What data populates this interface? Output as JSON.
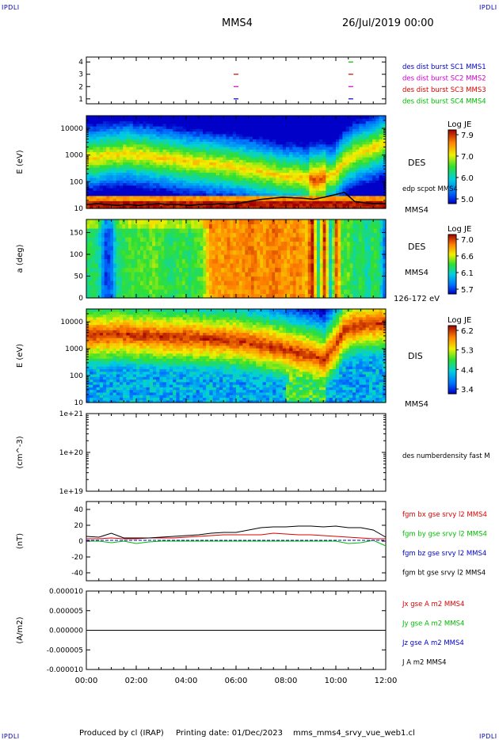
{
  "header": {
    "corner_label": "IPDLI",
    "spacecraft": "MMS4",
    "date": "26/Jul/2019 00:00"
  },
  "footer": {
    "produced_by": "Produced by cl (IRAP)",
    "printing_date": "Printing date: 01/Dec/2023",
    "config": "mms_mms4_srvy_vue_web1.cl"
  },
  "time_axis": {
    "ticks": [
      "00:00",
      "02:00",
      "04:00",
      "06:00",
      "08:00",
      "10:00",
      "12:00"
    ],
    "range_hours": [
      0,
      12
    ]
  },
  "colors": {
    "mms1": "#0000cc",
    "mms2": "#cc00cc",
    "mms3": "#dd0000",
    "mms4": "#00bb00",
    "bx": "#dd0000",
    "by": "#00bb00",
    "bz": "#0000cc",
    "bt": "#000000"
  },
  "chart_data": [
    {
      "type": "scatter",
      "ytick_labels": [
        "1",
        "2",
        "3",
        "4"
      ],
      "ylim": [
        0.6,
        4.4
      ],
      "legend": [
        "des dist burst SC1 MMS1",
        "des dist burst SC2 MMS2",
        "des dist burst SC3 MMS3",
        "des dist burst SC4 MMS4"
      ],
      "series": [
        {
          "sc": 1,
          "x": [
            6.0,
            10.6
          ]
        },
        {
          "sc": 2,
          "x": [
            6.0,
            10.6
          ]
        },
        {
          "sc": 3,
          "x": [
            6.0,
            10.6
          ]
        },
        {
          "sc": 4,
          "x": [
            10.6
          ]
        }
      ]
    },
    {
      "type": "heatmap",
      "ylabel": "E (eV)",
      "ytick_labels": [
        "10",
        "100",
        "1000",
        "10000"
      ],
      "scale": "log",
      "ylim": [
        10,
        30000
      ],
      "colorbar_title": "Log JE",
      "colorbar_ticks": [
        "7.9",
        "7.0",
        "6.0",
        "5.0"
      ],
      "instrument": "DES",
      "overlay_label": "edp scpot MMS4",
      "sc_label": "MMS4"
    },
    {
      "type": "heatmap",
      "ylabel": "a (deg)",
      "ytick_labels": [
        "0",
        "50",
        "100",
        "150"
      ],
      "ylim": [
        0,
        180
      ],
      "colorbar_title": "Log JE",
      "colorbar_ticks": [
        "7.0",
        "6.6",
        "6.1",
        "5.7"
      ],
      "instrument": "DES",
      "sc_label": "MMS4",
      "energy_range": "126-172 eV"
    },
    {
      "type": "heatmap",
      "ylabel": "E (eV)",
      "ytick_labels": [
        "10",
        "100",
        "1000",
        "10000"
      ],
      "scale": "log",
      "ylim": [
        10,
        30000
      ],
      "colorbar_title": "Log JE",
      "colorbar_ticks": [
        "6.2",
        "5.3",
        "4.4",
        "3.4"
      ],
      "instrument": "DIS",
      "sc_label": "MMS4"
    },
    {
      "type": "line",
      "ylabel": "(cm^-3)",
      "ytick_labels": [
        "1e+19",
        "1e+20",
        "1e+21"
      ],
      "scale": "log",
      "ylim": [
        1e+19,
        1e+21
      ],
      "legend": [
        "des numberdensity fast M"
      ]
    },
    {
      "type": "line",
      "ylabel": "(nT)",
      "ytick_labels": [
        "-40",
        "-20",
        "0",
        "20",
        "40"
      ],
      "ylim": [
        -50,
        50
      ],
      "legend": [
        "fgm bx gse srvy l2 MMS4",
        "fgm by gse srvy l2 MMS4",
        "fgm bz gse srvy l2 MMS4",
        "fgm bt gse srvy l2 MMS4"
      ],
      "x": [
        0,
        0.5,
        1,
        1.5,
        2,
        2.5,
        3,
        3.5,
        4,
        4.5,
        5,
        5.5,
        6,
        6.5,
        7,
        7.5,
        8,
        8.5,
        9,
        9.5,
        10,
        10.5,
        11,
        11.5,
        12
      ],
      "series": [
        {
          "key": "bx",
          "values": [
            3,
            3,
            4,
            3,
            3,
            4,
            4,
            4,
            5,
            6,
            7,
            8,
            8,
            8,
            8,
            10,
            9,
            8,
            8,
            7,
            6,
            5,
            4,
            3,
            3
          ]
        },
        {
          "key": "by",
          "values": [
            0,
            0,
            -2,
            0,
            -3,
            -1,
            0,
            0,
            0,
            0,
            0,
            0,
            0,
            0,
            0,
            0,
            0,
            0,
            0,
            0,
            0,
            -3,
            -2,
            1,
            -6
          ]
        },
        {
          "key": "bz",
          "values": [
            1,
            1,
            1,
            1,
            1,
            1,
            1,
            1,
            1,
            1,
            1,
            1,
            1,
            1,
            1,
            1,
            1,
            1,
            1,
            1,
            1,
            1,
            1,
            1,
            1
          ]
        },
        {
          "key": "bt",
          "values": [
            6,
            5,
            10,
            4,
            4,
            4,
            5,
            6,
            7,
            8,
            10,
            11,
            11,
            14,
            17,
            18,
            18,
            19,
            19,
            18,
            19,
            17,
            17,
            14,
            5
          ]
        }
      ]
    },
    {
      "type": "line",
      "ylabel": "(A/m2)",
      "ytick_labels": [
        "-0.000010",
        "-0.000005",
        "0.000000",
        "0.000005",
        "0.000010"
      ],
      "ylim": [
        -1e-05,
        1e-05
      ],
      "legend": [
        "Jx gse A m2 MMS4",
        "Jy gse A m2 MMS4",
        "Jz gse A m2 MMS4",
        "J A m2 MMS4"
      ],
      "x": [
        0,
        12
      ],
      "series": [
        {
          "key": "j",
          "values": [
            0,
            0
          ]
        }
      ]
    }
  ]
}
